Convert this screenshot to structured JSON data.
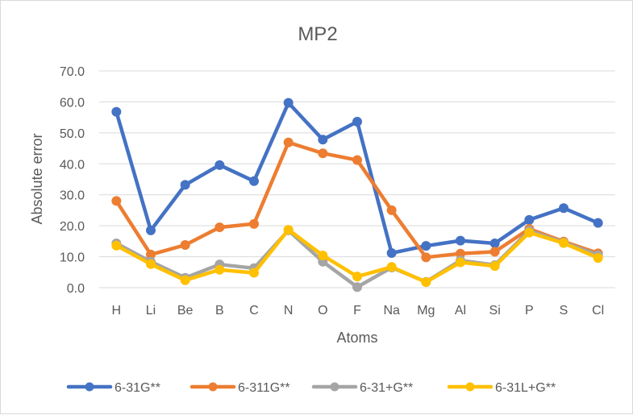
{
  "chart_data": {
    "type": "line",
    "title": "MP2",
    "xlabel": "Atoms",
    "ylabel": "Absolute error",
    "ylim": [
      0,
      70
    ],
    "yticks": [
      "0.0",
      "10.0",
      "20.0",
      "30.0",
      "40.0",
      "50.0",
      "60.0",
      "70.0"
    ],
    "grid": true,
    "legend_position": "bottom",
    "categories": [
      "H",
      "Li",
      "Be",
      "B",
      "C",
      "N",
      "O",
      "F",
      "Na",
      "Mg",
      "Al",
      "Si",
      "P",
      "S",
      "Cl"
    ],
    "series": [
      {
        "name": "6-31G**",
        "color": "#4472c4",
        "values": [
          56.8,
          18.5,
          33.2,
          39.6,
          34.4,
          59.7,
          47.8,
          53.6,
          11.2,
          13.5,
          15.2,
          14.3,
          21.9,
          25.7,
          20.9
        ]
      },
      {
        "name": "6-311G**",
        "color": "#ed7d31",
        "values": [
          28.0,
          10.7,
          13.8,
          19.5,
          20.6,
          46.9,
          43.4,
          41.2,
          25.0,
          9.8,
          11.0,
          11.6,
          19.0,
          14.9,
          11.1
        ]
      },
      {
        "name": "6-31+G**",
        "color": "#a5a5a5",
        "values": [
          14.3,
          8.4,
          3.2,
          7.5,
          6.3,
          18.5,
          8.4,
          0.2,
          6.5,
          1.9,
          8.8,
          7.3,
          18.4,
          14.6,
          10.5
        ]
      },
      {
        "name": "6-31L+G**",
        "color": "#ffc000",
        "values": [
          13.6,
          7.6,
          2.4,
          5.8,
          4.8,
          18.7,
          10.4,
          3.6,
          6.7,
          1.8,
          8.2,
          7.0,
          17.8,
          14.4,
          9.6
        ]
      }
    ]
  }
}
